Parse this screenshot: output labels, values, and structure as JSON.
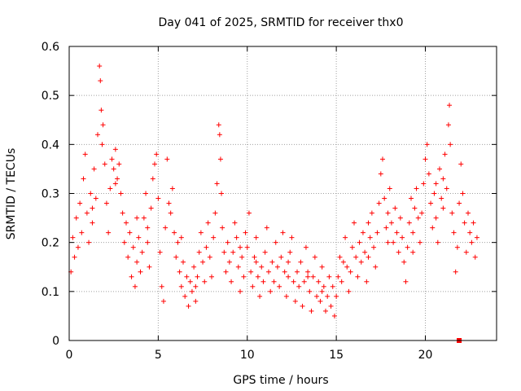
{
  "chart_data": {
    "type": "scatter",
    "title": "Day 041 of 2025, SRMTID for receiver thx0",
    "xlabel": "GPS time / hours",
    "ylabel": "SRMTID / TECUs",
    "xlim": [
      0,
      24
    ],
    "ylim": [
      0,
      0.6
    ],
    "xticks": [
      0,
      5,
      10,
      15,
      20
    ],
    "xtick_labels": [
      "0",
      "5",
      "10",
      "15",
      "20"
    ],
    "yticks": [
      0,
      0.1,
      0.2,
      0.3,
      0.4,
      0.5,
      0.6
    ],
    "ytick_labels": [
      "0",
      "0.1",
      "0.2",
      "0.3",
      "0.4",
      "0.5",
      "0.6"
    ],
    "grid": true,
    "marker": "+",
    "color": "#ff0000",
    "series": [
      {
        "name": "SRMTID",
        "points": [
          [
            0.1,
            0.14
          ],
          [
            0.2,
            0.21
          ],
          [
            0.3,
            0.17
          ],
          [
            0.4,
            0.25
          ],
          [
            0.5,
            0.19
          ],
          [
            0.6,
            0.28
          ],
          [
            0.7,
            0.22
          ],
          [
            0.8,
            0.33
          ],
          [
            0.9,
            0.38
          ],
          [
            1.0,
            0.26
          ],
          [
            1.1,
            0.2
          ],
          [
            1.2,
            0.3
          ],
          [
            1.3,
            0.24
          ],
          [
            1.4,
            0.35
          ],
          [
            1.5,
            0.29
          ],
          [
            1.6,
            0.42
          ],
          [
            1.7,
            0.56
          ],
          [
            1.75,
            0.53
          ],
          [
            1.8,
            0.47
          ],
          [
            1.85,
            0.4
          ],
          [
            1.9,
            0.44
          ],
          [
            2.0,
            0.36
          ],
          [
            2.1,
            0.28
          ],
          [
            2.2,
            0.22
          ],
          [
            2.3,
            0.31
          ],
          [
            2.4,
            0.37
          ],
          [
            2.5,
            0.35
          ],
          [
            2.6,
            0.39
          ],
          [
            2.7,
            0.33
          ],
          [
            2.8,
            0.36
          ],
          [
            2.9,
            0.3
          ],
          [
            3.0,
            0.26
          ],
          [
            3.1,
            0.2
          ],
          [
            3.2,
            0.24
          ],
          [
            3.3,
            0.17
          ],
          [
            3.4,
            0.22
          ],
          [
            3.5,
            0.13
          ],
          [
            3.6,
            0.19
          ],
          [
            3.7,
            0.11
          ],
          [
            3.8,
            0.16
          ],
          [
            3.9,
            0.21
          ],
          [
            4.0,
            0.14
          ],
          [
            4.1,
            0.18
          ],
          [
            4.2,
            0.25
          ],
          [
            4.3,
            0.3
          ],
          [
            4.4,
            0.2
          ],
          [
            4.5,
            0.15
          ],
          [
            4.6,
            0.27
          ],
          [
            4.7,
            0.33
          ],
          [
            4.8,
            0.36
          ],
          [
            4.9,
            0.38
          ],
          [
            5.0,
            0.29
          ],
          [
            5.1,
            0.18
          ],
          [
            5.2,
            0.11
          ],
          [
            5.3,
            0.08
          ],
          [
            5.4,
            0.23
          ],
          [
            5.5,
            0.37
          ],
          [
            5.6,
            0.28
          ],
          [
            5.7,
            0.26
          ],
          [
            5.8,
            0.31
          ],
          [
            5.9,
            0.22
          ],
          [
            6.0,
            0.17
          ],
          [
            6.1,
            0.2
          ],
          [
            6.2,
            0.14
          ],
          [
            6.3,
            0.11
          ],
          [
            6.4,
            0.16
          ],
          [
            6.5,
            0.09
          ],
          [
            6.6,
            0.13
          ],
          [
            6.7,
            0.07
          ],
          [
            6.8,
            0.12
          ],
          [
            6.9,
            0.1
          ],
          [
            7.0,
            0.15
          ],
          [
            7.1,
            0.08
          ],
          [
            7.2,
            0.13
          ],
          [
            7.3,
            0.18
          ],
          [
            7.4,
            0.22
          ],
          [
            7.5,
            0.16
          ],
          [
            7.6,
            0.12
          ],
          [
            7.7,
            0.19
          ],
          [
            7.8,
            0.24
          ],
          [
            7.9,
            0.17
          ],
          [
            8.0,
            0.13
          ],
          [
            8.1,
            0.21
          ],
          [
            8.2,
            0.26
          ],
          [
            8.3,
            0.32
          ],
          [
            8.4,
            0.44
          ],
          [
            8.45,
            0.42
          ],
          [
            8.5,
            0.37
          ],
          [
            8.55,
            0.3
          ],
          [
            8.6,
            0.23
          ],
          [
            8.7,
            0.18
          ],
          [
            8.8,
            0.14
          ],
          [
            8.9,
            0.2
          ],
          [
            9.0,
            0.16
          ],
          [
            9.1,
            0.12
          ],
          [
            9.2,
            0.18
          ],
          [
            9.3,
            0.24
          ],
          [
            9.4,
            0.21
          ],
          [
            9.5,
            0.15
          ],
          [
            9.6,
            0.1
          ],
          [
            9.7,
            0.17
          ],
          [
            9.8,
            0.13
          ],
          [
            9.9,
            0.22
          ],
          [
            10.0,
            0.19
          ],
          [
            10.1,
            0.26
          ],
          [
            10.2,
            0.14
          ],
          [
            10.3,
            0.11
          ],
          [
            10.4,
            0.17
          ],
          [
            10.5,
            0.21
          ],
          [
            10.6,
            0.13
          ],
          [
            10.7,
            0.09
          ],
          [
            10.8,
            0.15
          ],
          [
            10.9,
            0.12
          ],
          [
            11.0,
            0.18
          ],
          [
            11.1,
            0.23
          ],
          [
            11.2,
            0.14
          ],
          [
            11.3,
            0.1
          ],
          [
            11.4,
            0.16
          ],
          [
            11.5,
            0.12
          ],
          [
            11.6,
            0.2
          ],
          [
            11.7,
            0.15
          ],
          [
            11.8,
            0.11
          ],
          [
            11.9,
            0.17
          ],
          [
            12.0,
            0.22
          ],
          [
            12.1,
            0.14
          ],
          [
            12.2,
            0.09
          ],
          [
            12.3,
            0.13
          ],
          [
            12.4,
            0.18
          ],
          [
            12.5,
            0.21
          ],
          [
            12.6,
            0.12
          ],
          [
            12.7,
            0.08
          ],
          [
            12.8,
            0.14
          ],
          [
            12.9,
            0.11
          ],
          [
            13.0,
            0.16
          ],
          [
            13.1,
            0.07
          ],
          [
            13.2,
            0.12
          ],
          [
            13.3,
            0.19
          ],
          [
            13.4,
            0.14
          ],
          [
            13.5,
            0.1
          ],
          [
            13.6,
            0.06
          ],
          [
            13.7,
            0.13
          ],
          [
            13.8,
            0.17
          ],
          [
            13.9,
            0.09
          ],
          [
            14.0,
            0.12
          ],
          [
            14.1,
            0.08
          ],
          [
            14.2,
            0.15
          ],
          [
            14.3,
            0.11
          ],
          [
            14.4,
            0.06
          ],
          [
            14.5,
            0.09
          ],
          [
            14.6,
            0.13
          ],
          [
            14.7,
            0.07
          ],
          [
            14.8,
            0.11
          ],
          [
            14.9,
            0.05
          ],
          [
            15.0,
            0.09
          ],
          [
            15.1,
            0.13
          ],
          [
            15.2,
            0.17
          ],
          [
            15.3,
            0.12
          ],
          [
            15.4,
            0.16
          ],
          [
            15.5,
            0.21
          ],
          [
            15.6,
            0.15
          ],
          [
            15.7,
            0.1
          ],
          [
            15.8,
            0.14
          ],
          [
            15.9,
            0.19
          ],
          [
            16.0,
            0.24
          ],
          [
            16.1,
            0.17
          ],
          [
            16.2,
            0.13
          ],
          [
            16.3,
            0.2
          ],
          [
            16.4,
            0.16
          ],
          [
            16.5,
            0.22
          ],
          [
            16.6,
            0.18
          ],
          [
            16.7,
            0.12
          ],
          [
            16.8,
            0.17
          ],
          [
            16.9,
            0.21
          ],
          [
            17.0,
            0.26
          ],
          [
            17.1,
            0.19
          ],
          [
            17.2,
            0.15
          ],
          [
            17.3,
            0.22
          ],
          [
            17.4,
            0.28
          ],
          [
            17.5,
            0.34
          ],
          [
            17.6,
            0.37
          ],
          [
            17.7,
            0.29
          ],
          [
            17.8,
            0.23
          ],
          [
            17.9,
            0.26
          ],
          [
            18.0,
            0.31
          ],
          [
            18.1,
            0.24
          ],
          [
            18.2,
            0.2
          ],
          [
            18.3,
            0.27
          ],
          [
            18.4,
            0.22
          ],
          [
            18.5,
            0.18
          ],
          [
            18.6,
            0.25
          ],
          [
            18.7,
            0.21
          ],
          [
            18.8,
            0.16
          ],
          [
            18.9,
            0.12
          ],
          [
            19.0,
            0.19
          ],
          [
            19.1,
            0.24
          ],
          [
            19.2,
            0.29
          ],
          [
            19.3,
            0.22
          ],
          [
            19.4,
            0.27
          ],
          [
            19.5,
            0.31
          ],
          [
            19.6,
            0.25
          ],
          [
            19.7,
            0.2
          ],
          [
            19.8,
            0.26
          ],
          [
            19.9,
            0.32
          ],
          [
            20.0,
            0.37
          ],
          [
            20.1,
            0.4
          ],
          [
            20.2,
            0.34
          ],
          [
            20.3,
            0.28
          ],
          [
            20.4,
            0.23
          ],
          [
            20.5,
            0.3
          ],
          [
            20.6,
            0.25
          ],
          [
            20.7,
            0.2
          ],
          [
            20.8,
            0.35
          ],
          [
            20.9,
            0.29
          ],
          [
            21.0,
            0.33
          ],
          [
            21.1,
            0.38
          ],
          [
            21.2,
            0.31
          ],
          [
            21.3,
            0.44
          ],
          [
            21.35,
            0.48
          ],
          [
            21.4,
            0.4
          ],
          [
            21.5,
            0.26
          ],
          [
            21.6,
            0.22
          ],
          [
            21.7,
            0.14
          ],
          [
            21.8,
            0.19
          ],
          [
            21.9,
            0.28
          ],
          [
            22.0,
            0.36
          ],
          [
            22.1,
            0.3
          ],
          [
            22.2,
            0.24
          ],
          [
            22.3,
            0.18
          ],
          [
            22.4,
            0.26
          ],
          [
            22.5,
            0.22
          ],
          [
            22.6,
            0.2
          ],
          [
            22.7,
            0.24
          ],
          [
            22.8,
            0.17
          ],
          [
            22.9,
            0.21
          ],
          [
            1.3,
            0.27
          ],
          [
            2.6,
            0.32
          ],
          [
            4.4,
            0.23
          ],
          [
            7.1,
            0.11
          ],
          [
            9.6,
            0.19
          ],
          [
            12.3,
            0.16
          ],
          [
            14.2,
            0.1
          ],
          [
            16.8,
            0.24
          ],
          [
            19.3,
            0.18
          ],
          [
            21.0,
            0.27
          ],
          [
            3.8,
            0.25
          ],
          [
            6.3,
            0.21
          ],
          [
            10.5,
            0.16
          ],
          [
            13.4,
            0.13
          ],
          [
            17.9,
            0.2
          ],
          [
            20.6,
            0.32
          ]
        ]
      }
    ],
    "outliers": [
      {
        "x": 21.9,
        "y": 0.0,
        "marker": "square"
      }
    ]
  }
}
